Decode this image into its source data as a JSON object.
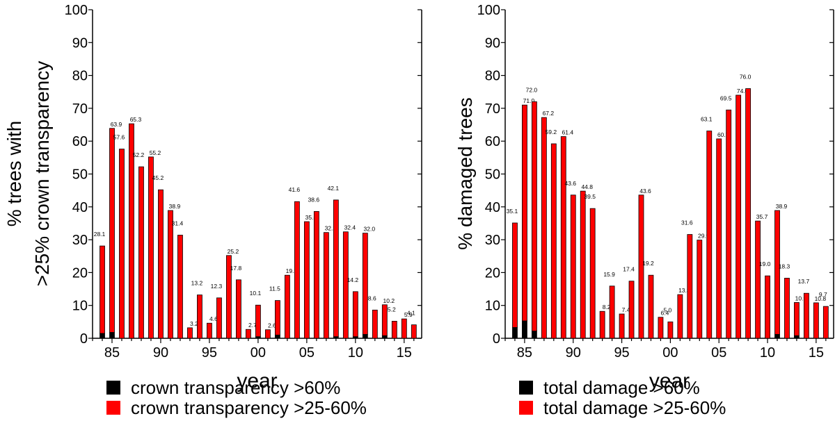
{
  "chart_data": [
    {
      "type": "bar",
      "stacked": true,
      "ylabel_lines": [
        "% trees with",
        ">25% crown transparency"
      ],
      "xlabel": "year",
      "ylim": [
        0,
        100
      ],
      "yticks": [
        0,
        10,
        20,
        30,
        40,
        50,
        60,
        70,
        80,
        90,
        100
      ],
      "xlim": [
        1983,
        2016.8
      ],
      "xticks": [
        1985,
        1990,
        1995,
        2000,
        2005,
        2010,
        2015
      ],
      "xtick_labels": [
        "85",
        "90",
        "95",
        "00",
        "05",
        "10",
        "15"
      ],
      "grid": false,
      "legend_position": "bottom",
      "colors": {
        "severe": "#000000",
        "moderate": "#ff0000"
      },
      "series": [
        {
          "name": "crown transparency >60%",
          "color": "#000000",
          "values": [
            1.5,
            1.8,
            0,
            0,
            0,
            0,
            0,
            0,
            0,
            0,
            0,
            0,
            0,
            0,
            0,
            0,
            0.5,
            0,
            1.0,
            0,
            0,
            0,
            0,
            0,
            0.5,
            0,
            0.5,
            1.2,
            0,
            0.8,
            0,
            0,
            0
          ]
        },
        {
          "name": "crown transparency >25-60%",
          "color": "#ff0000",
          "values": [
            26.6,
            62.1,
            57.6,
            65.3,
            52.2,
            55.2,
            45.2,
            38.9,
            31.4,
            3.2,
            13.2,
            4.6,
            12.3,
            25.2,
            17.8,
            2.7,
            9.6,
            2.6,
            10.5,
            19.2,
            41.6,
            35.5,
            38.6,
            32.2,
            41.6,
            32.4,
            13.7,
            30.8,
            8.6,
            9.4,
            5.2,
            5.9,
            4.1
          ]
        }
      ],
      "years": [
        1984,
        1985,
        1986,
        1987,
        1988,
        1989,
        1990,
        1991,
        1992,
        1993,
        1994,
        1995,
        1996,
        1997,
        1998,
        1999,
        2000,
        2001,
        2002,
        2003,
        2004,
        2005,
        2006,
        2007,
        2008,
        2009,
        2010,
        2011,
        2012,
        2013,
        2014,
        2015,
        2016
      ],
      "totals": [
        28.1,
        63.9,
        57.6,
        65.3,
        52.2,
        55.2,
        45.2,
        38.9,
        31.4,
        3.2,
        13.2,
        4.6,
        12.3,
        25.2,
        17.8,
        2.7,
        10.1,
        2.6,
        11.5,
        19.2,
        41.6,
        35.5,
        38.6,
        32.2,
        42.1,
        32.4,
        14.2,
        32.0,
        8.6,
        10.2,
        5.2,
        5.9,
        4.1
      ],
      "data_labels": [
        "28.1",
        "63.9",
        "57.6",
        "65.3",
        "52.2",
        "55.2",
        "45.2",
        "38.9",
        "31.4",
        "3.2",
        "13.2",
        "4.6",
        "12.3",
        "25.2",
        "17.8",
        "2.7",
        "10.1",
        "2.6",
        "11.5",
        "19.2",
        "41.6",
        "35.5",
        "38.6",
        "32.2",
        "42.1",
        "32.4",
        "14.2",
        "32.0",
        "8.6",
        "10.2",
        "5.2",
        "5.9",
        "4.1"
      ]
    },
    {
      "type": "bar",
      "stacked": true,
      "ylabel_lines": [
        "% damaged trees"
      ],
      "xlabel": "year",
      "ylim": [
        0,
        100
      ],
      "yticks": [
        0,
        10,
        20,
        30,
        40,
        50,
        60,
        70,
        80,
        90,
        100
      ],
      "xlim": [
        1983,
        2016.8
      ],
      "xticks": [
        1985,
        1990,
        1995,
        2000,
        2005,
        2010,
        2015
      ],
      "xtick_labels": [
        "85",
        "90",
        "95",
        "00",
        "05",
        "10",
        "15"
      ],
      "grid": false,
      "legend_position": "bottom",
      "colors": {
        "severe": "#000000",
        "moderate": "#ff0000"
      },
      "series": [
        {
          "name": "total damage >60%",
          "color": "#000000",
          "values": [
            3.3,
            5.3,
            2.2,
            0,
            0,
            0,
            0,
            0,
            0,
            0,
            0,
            0,
            0,
            0,
            0,
            0,
            0,
            0,
            0,
            0,
            0,
            0,
            0,
            0,
            0,
            0,
            0,
            1.2,
            0,
            0.8,
            0,
            0,
            0
          ]
        },
        {
          "name": "total damage >25-60%",
          "color": "#ff0000",
          "values": [
            31.8,
            65.7,
            69.8,
            67.2,
            59.2,
            61.4,
            43.6,
            44.8,
            39.5,
            8.2,
            15.9,
            7.4,
            17.4,
            43.6,
            19.2,
            6.4,
            5.0,
            13.3,
            31.6,
            29.9,
            63.1,
            60.7,
            69.5,
            74.0,
            76.0,
            35.7,
            19.0,
            37.7,
            18.3,
            10.1,
            13.7,
            10.8,
            9.7
          ]
        }
      ],
      "years": [
        1984,
        1985,
        1986,
        1987,
        1988,
        1989,
        1990,
        1991,
        1992,
        1993,
        1994,
        1995,
        1996,
        1997,
        1998,
        1999,
        2000,
        2001,
        2002,
        2003,
        2004,
        2005,
        2006,
        2007,
        2008,
        2009,
        2010,
        2011,
        2012,
        2013,
        2014,
        2015,
        2016
      ],
      "totals": [
        35.1,
        71.0,
        72.0,
        67.2,
        59.2,
        61.4,
        43.6,
        44.8,
        39.5,
        8.2,
        15.9,
        7.4,
        17.4,
        43.6,
        19.2,
        6.4,
        5.0,
        13.3,
        31.6,
        29.9,
        63.1,
        60.7,
        69.5,
        74.0,
        76.0,
        35.7,
        19.0,
        38.9,
        18.3,
        10.9,
        13.7,
        10.8,
        9.7
      ],
      "data_labels": [
        "35.1",
        "71.0",
        "72.0",
        "67.2",
        "59.2",
        "61.4",
        "43.6",
        "44.8",
        "39.5",
        "8.2",
        "15.9",
        "7.4",
        "17.4",
        "43.6",
        "19.2",
        "6.4",
        "5.0",
        "13.3",
        "31.6",
        "29.9",
        "63.1",
        "60.7",
        "69.5",
        "74.0",
        "76.0",
        "35.7",
        "19.0",
        "38.9",
        "18.3",
        "10.9",
        "13.7",
        "10.8",
        "9.7"
      ]
    }
  ]
}
